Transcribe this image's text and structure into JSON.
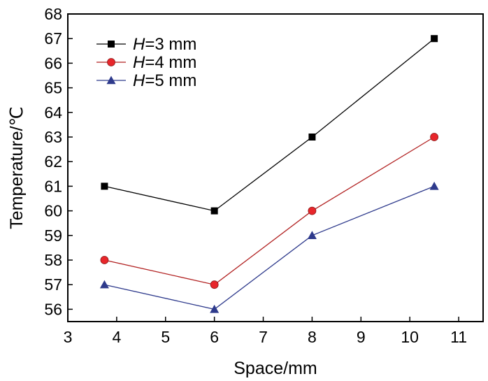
{
  "chart_data": {
    "type": "line",
    "title": "",
    "xlabel": "Space/mm",
    "ylabel": "Temperature/℃",
    "xlim": [
      3,
      11.5
    ],
    "ylim": [
      55.5,
      68
    ],
    "xticks": [
      3,
      4,
      5,
      6,
      7,
      8,
      9,
      10,
      11
    ],
    "yticks": [
      56,
      57,
      58,
      59,
      60,
      61,
      62,
      63,
      64,
      65,
      66,
      67,
      68
    ],
    "x": [
      3.75,
      6,
      8,
      10.5
    ],
    "legend_position": "top-left",
    "series": [
      {
        "name": "H=3 mm",
        "legend_var": "H",
        "legend_rest": "=3 mm",
        "values": [
          61,
          60,
          63,
          67
        ],
        "color": "#000000",
        "line_color": "#000000",
        "marker": "square"
      },
      {
        "name": "H=4 mm",
        "legend_var": "H",
        "legend_rest": "=4 mm",
        "values": [
          58,
          57,
          60,
          63
        ],
        "color": "#e8262b",
        "line_color": "#b22222",
        "marker": "circle"
      },
      {
        "name": "H=5 mm",
        "legend_var": "H",
        "legend_rest": "=5 mm",
        "values": [
          57,
          56,
          59,
          61
        ],
        "color": "#2e3a8c",
        "line_color": "#2e3a8c",
        "marker": "triangle"
      }
    ]
  }
}
